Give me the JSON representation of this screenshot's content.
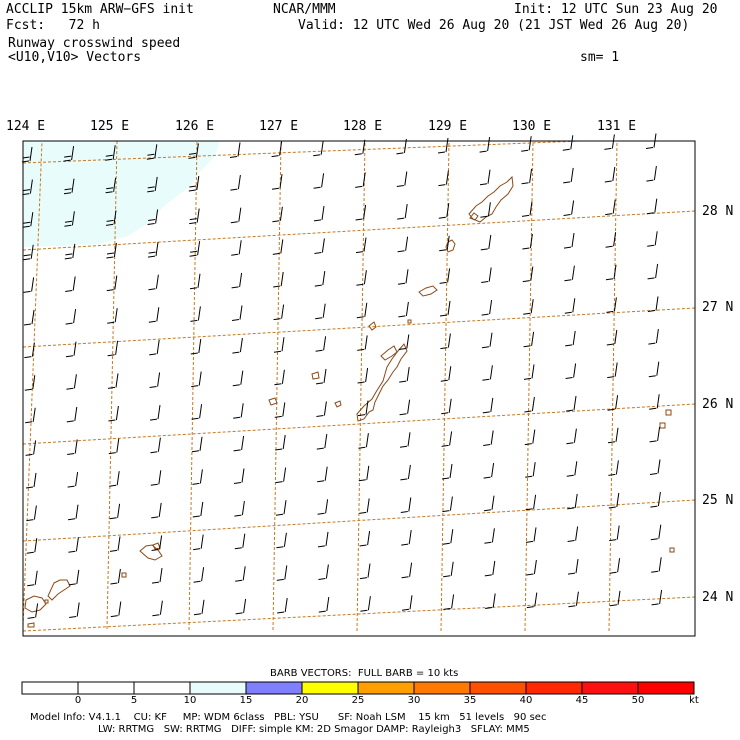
{
  "header": {
    "model": "ACCLIP 15km ARW−GFS init",
    "fcst": "Fcst:   72 h",
    "field": "Runway crosswind speed",
    "vectors": "<U10,V10> Vectors",
    "org": "NCAR/MMM",
    "init": "Init: 12 UTC Sun 23 Aug 20",
    "valid": "Valid: 12 UTC Wed 26 Aug 20 (21 JST Wed 26 Aug 20)",
    "sm": "sm= 1"
  },
  "longitude_labels": [
    "124 E",
    "125 E",
    "126 E",
    "127 E",
    "128 E",
    "129 E",
    "130 E",
    "131 E"
  ],
  "latitude_labels": [
    "28 N",
    "27 N",
    "26 N",
    "25 N",
    "24 N"
  ],
  "barb_caption": "BARB VECTORS:  FULL BARB = 10 kts",
  "colorbar": {
    "ticks": [
      "0",
      "5",
      "10",
      "15",
      "20",
      "25",
      "30",
      "35",
      "40",
      "45",
      "50"
    ],
    "unit": "kt",
    "colors": [
      "#ffffff",
      "#ffffff",
      "#ffffff",
      "#e8fcfc",
      "#8080ff",
      "#ffff00",
      "#ffa000",
      "#ff7800",
      "#ff5000",
      "#ff2800",
      "#ff1010",
      "#ff0000"
    ]
  },
  "footer": {
    "line1": "Model Info: V4.1.1    CU: KF     MP: WDM 6class   PBL: YSU      SF: Noah LSM    15 km   51 levels   90 sec",
    "line2": "LW: RRTMG   SW: RRTMG   DIFF: simple KM: 2D Smagor DAMP: Rayleigh3   SFLAY: MM5"
  },
  "colors": {
    "grid": "#c8781e",
    "coast": "#8b4a16",
    "shade_light": "#e8fcfc"
  }
}
